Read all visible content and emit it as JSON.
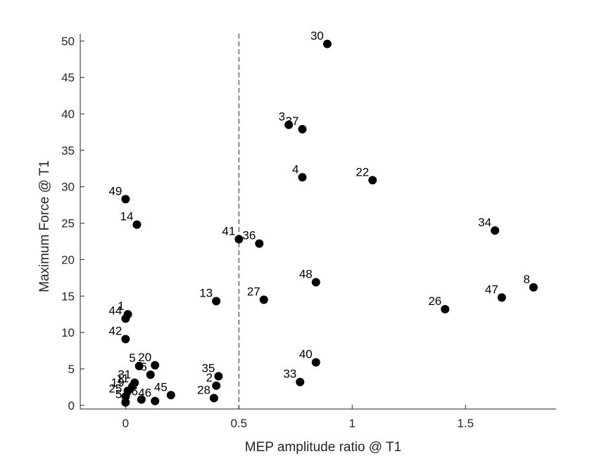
{
  "chart_data": {
    "type": "scatter",
    "xlabel": "MEP amplitude ratio @ T1",
    "ylabel": "Maximum Force @ T1",
    "xlim": [
      -0.2,
      1.9
    ],
    "ylim": [
      -0.5,
      51
    ],
    "xticks": [
      0,
      0.5,
      1,
      1.5
    ],
    "xtick_labels": [
      "0",
      "0.5",
      "1",
      "1.5"
    ],
    "yticks": [
      0,
      5,
      10,
      15,
      20,
      25,
      30,
      35,
      40,
      45,
      50
    ],
    "ytick_labels": [
      "0",
      "5",
      "10",
      "15",
      "20",
      "25",
      "30",
      "35",
      "40",
      "45",
      "50"
    ],
    "grid": false,
    "reference_line": {
      "x": 0.5,
      "style": "dashed"
    },
    "marker_color": "#000000",
    "points": [
      {
        "label": "30",
        "x": 0.89,
        "y": 49.6
      },
      {
        "label": "3",
        "x": 0.72,
        "y": 38.5
      },
      {
        "label": "37",
        "x": 0.78,
        "y": 37.9
      },
      {
        "label": "4",
        "x": 0.78,
        "y": 31.3
      },
      {
        "label": "22",
        "x": 1.09,
        "y": 30.9
      },
      {
        "label": "49",
        "x": 0.0,
        "y": 28.3
      },
      {
        "label": "14",
        "x": 0.05,
        "y": 24.8
      },
      {
        "label": "34",
        "x": 1.63,
        "y": 24.0
      },
      {
        "label": "41",
        "x": 0.5,
        "y": 22.8
      },
      {
        "label": "36",
        "x": 0.59,
        "y": 22.2
      },
      {
        "label": "48",
        "x": 0.84,
        "y": 16.9
      },
      {
        "label": "8",
        "x": 1.8,
        "y": 16.2
      },
      {
        "label": "47",
        "x": 1.66,
        "y": 14.8
      },
      {
        "label": "27",
        "x": 0.61,
        "y": 14.5
      },
      {
        "label": "13",
        "x": 0.4,
        "y": 14.3
      },
      {
        "label": "26",
        "x": 1.41,
        "y": 13.2
      },
      {
        "label": "1",
        "x": 0.01,
        "y": 12.5
      },
      {
        "label": "44",
        "x": 0.0,
        "y": 11.9
      },
      {
        "label": "42",
        "x": 0.0,
        "y": 9.1
      },
      {
        "label": "40",
        "x": 0.84,
        "y": 5.9
      },
      {
        "label": "5",
        "x": 0.06,
        "y": 5.4
      },
      {
        "label": "20",
        "x": 0.13,
        "y": 5.5
      },
      {
        "label": "6",
        "x": 0.11,
        "y": 4.2
      },
      {
        "label": "35",
        "x": 0.41,
        "y": 4.0
      },
      {
        "label": "33",
        "x": 0.77,
        "y": 3.2
      },
      {
        "label": "31",
        "x": 0.04,
        "y": 3.1
      },
      {
        "label": "11",
        "x": 0.03,
        "y": 2.6
      },
      {
        "label": "2",
        "x": 0.4,
        "y": 2.7
      },
      {
        "label": "19",
        "x": 0.01,
        "y": 2.0
      },
      {
        "label": "28",
        "x": 0.39,
        "y": 1.0
      },
      {
        "label": "45",
        "x": 0.2,
        "y": 1.4
      },
      {
        "label": "16",
        "x": 0.07,
        "y": 0.8
      },
      {
        "label": "46",
        "x": 0.13,
        "y": 0.6
      },
      {
        "label": "25",
        "x": 0.0,
        "y": 1.2
      },
      {
        "label": "5",
        "x": 0.0,
        "y": 0.4
      }
    ]
  }
}
